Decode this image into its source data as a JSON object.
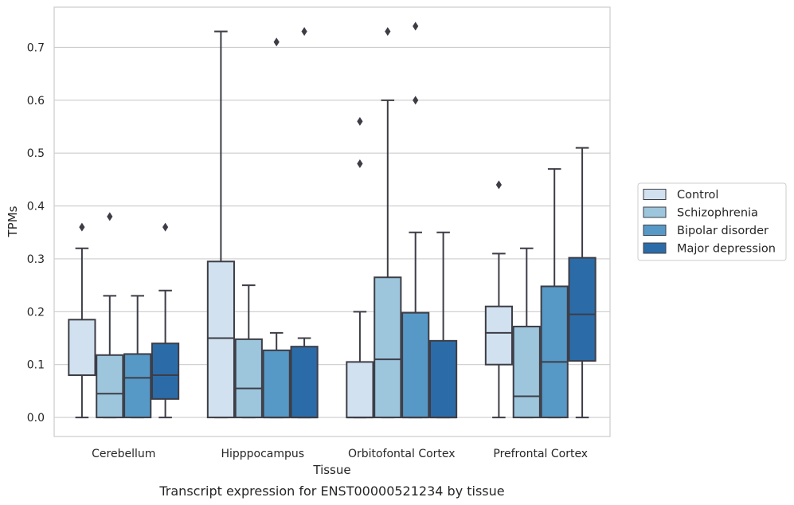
{
  "caption": "Transcript expression for ENST00000521234 by tissue",
  "chart_data": {
    "type": "box",
    "title": "",
    "xlabel": "Tissue",
    "ylabel": "TPMs",
    "ylim": [
      -0.036,
      0.776
    ],
    "yticks": [
      0.0,
      0.1,
      0.2,
      0.3,
      0.4,
      0.5,
      0.6,
      0.7
    ],
    "ytick_labels": [
      "0.0",
      "0.1",
      "0.2",
      "0.3",
      "0.4",
      "0.5",
      "0.6",
      "0.7"
    ],
    "grid": "horizontal",
    "legend_position": "right",
    "categories": [
      "Cerebellum",
      "Hipppocampus",
      "Orbitofontal Cortex",
      "Prefrontal Cortex"
    ],
    "series": [
      {
        "name": "Control",
        "color": "#d1e1ef",
        "boxes": [
          {
            "whislo": 0.0,
            "q1": 0.08,
            "med": 0.08,
            "q3": 0.185,
            "whishi": 0.32,
            "fliers": [
              0.36
            ]
          },
          {
            "whislo": 0.0,
            "q1": 0.0,
            "med": 0.15,
            "q3": 0.295,
            "whishi": 0.73,
            "fliers": []
          },
          {
            "whislo": 0.0,
            "q1": 0.0,
            "med": 0.0,
            "q3": 0.105,
            "whishi": 0.2,
            "fliers": [
              0.48,
              0.56
            ]
          },
          {
            "whislo": 0.0,
            "q1": 0.1,
            "med": 0.16,
            "q3": 0.21,
            "whishi": 0.31,
            "fliers": [
              0.44
            ]
          }
        ]
      },
      {
        "name": "Schizophrenia",
        "color": "#9dc6dd",
        "boxes": [
          {
            "whislo": 0.0,
            "q1": 0.0,
            "med": 0.045,
            "q3": 0.118,
            "whishi": 0.23,
            "fliers": [
              0.38
            ]
          },
          {
            "whislo": 0.0,
            "q1": 0.0,
            "med": 0.055,
            "q3": 0.148,
            "whishi": 0.25,
            "fliers": []
          },
          {
            "whislo": 0.0,
            "q1": 0.0,
            "med": 0.11,
            "q3": 0.265,
            "whishi": 0.6,
            "fliers": [
              0.73
            ]
          },
          {
            "whislo": 0.0,
            "q1": 0.0,
            "med": 0.04,
            "q3": 0.172,
            "whishi": 0.32,
            "fliers": []
          }
        ]
      },
      {
        "name": "Bipolar disorder",
        "color": "#5799c6",
        "boxes": [
          {
            "whislo": 0.0,
            "q1": 0.0,
            "med": 0.075,
            "q3": 0.12,
            "whishi": 0.23,
            "fliers": []
          },
          {
            "whislo": 0.0,
            "q1": 0.0,
            "med": 0.0,
            "q3": 0.127,
            "whishi": 0.16,
            "fliers": [
              0.71
            ]
          },
          {
            "whislo": 0.0,
            "q1": 0.0,
            "med": 0.0,
            "q3": 0.198,
            "whishi": 0.35,
            "fliers": [
              0.6,
              0.74
            ]
          },
          {
            "whislo": 0.0,
            "q1": 0.0,
            "med": 0.105,
            "q3": 0.248,
            "whishi": 0.47,
            "fliers": []
          }
        ]
      },
      {
        "name": "Major depression",
        "color": "#2b6ca8",
        "boxes": [
          {
            "whislo": 0.0,
            "q1": 0.035,
            "med": 0.08,
            "q3": 0.14,
            "whishi": 0.24,
            "fliers": [
              0.36
            ]
          },
          {
            "whislo": 0.0,
            "q1": 0.0,
            "med": 0.0,
            "q3": 0.134,
            "whishi": 0.15,
            "fliers": [
              0.73
            ]
          },
          {
            "whislo": 0.0,
            "q1": 0.0,
            "med": 0.0,
            "q3": 0.145,
            "whishi": 0.35,
            "fliers": []
          },
          {
            "whislo": 0.0,
            "q1": 0.107,
            "med": 0.195,
            "q3": 0.302,
            "whishi": 0.51,
            "fliers": []
          }
        ]
      }
    ]
  }
}
